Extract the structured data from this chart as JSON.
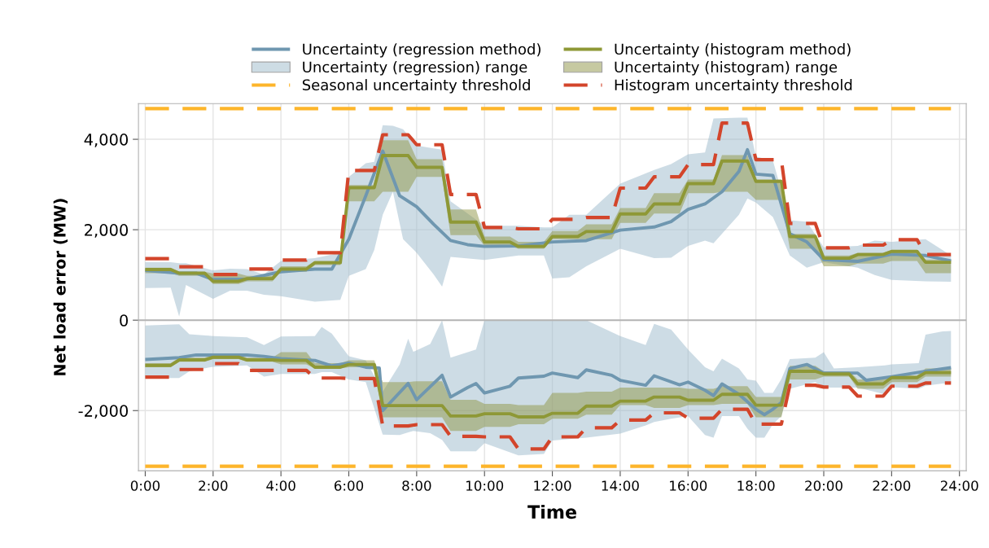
{
  "chart_data": {
    "type": "line",
    "xlabel": "Time",
    "ylabel": "Net load error (MW)",
    "x": [
      0,
      0.75,
      1,
      1.75,
      2,
      2.75,
      3,
      3.75,
      4,
      4.75,
      5,
      5.75,
      6,
      6.75,
      7,
      7.75,
      8,
      8.75,
      9,
      9.75,
      10,
      10.75,
      11,
      11.75,
      12,
      12.75,
      13,
      13.75,
      14,
      14.75,
      15,
      15.75,
      16,
      16.75,
      17,
      17.75,
      18,
      18.75,
      19,
      19.75,
      20,
      20.75,
      21,
      21.75,
      22,
      22.75,
      23,
      23.75
    ],
    "xlim": [
      -0.2,
      24.2
    ],
    "xticks": [
      {
        "value": 0,
        "label": "0:00"
      },
      {
        "value": 2,
        "label": "2:00"
      },
      {
        "value": 4,
        "label": "4:00"
      },
      {
        "value": 6,
        "label": "6:00"
      },
      {
        "value": 8,
        "label": "8:00"
      },
      {
        "value": 10,
        "label": "10:00"
      },
      {
        "value": 12,
        "label": "12:00"
      },
      {
        "value": 14,
        "label": "14:00"
      },
      {
        "value": 16,
        "label": "16:00"
      },
      {
        "value": 18,
        "label": "18:00"
      },
      {
        "value": 20,
        "label": "20:00"
      },
      {
        "value": 22,
        "label": "22:00"
      },
      {
        "value": 24,
        "label": "24:00"
      }
    ],
    "ylim": [
      -3330,
      4790
    ],
    "yticks": [
      {
        "value": -2000,
        "label": "-2,000"
      },
      0,
      {
        "value": 2000,
        "label": "2,000"
      },
      {
        "value": 4000,
        "label": "4,000"
      }
    ],
    "grid": true,
    "legend": "top",
    "ref_lines": [
      {
        "axis": "y",
        "value": 0,
        "color": "#b4b4b4"
      }
    ],
    "series": [
      {
        "name": "Uncertainty (regression method)",
        "color": "#6f97b0",
        "x": [
          0,
          1,
          1.5,
          2,
          3,
          4,
          5,
          5.5,
          6,
          6.5,
          7,
          7.5,
          8,
          8.5,
          9,
          9.5,
          10,
          11,
          12,
          13,
          14,
          15,
          15.5,
          16,
          16.5,
          17,
          17.5,
          17.75,
          18,
          18.5,
          19,
          19.5,
          20,
          21,
          22,
          23,
          23.75
        ],
        "values": [
          1100,
          1040,
          1040,
          900,
          910,
          1070,
          1130,
          1130,
          1790,
          2750,
          3740,
          2750,
          2510,
          2120,
          1760,
          1670,
          1630,
          1640,
          1730,
          1760,
          1990,
          2060,
          2180,
          2450,
          2570,
          2840,
          3290,
          3770,
          3230,
          3200,
          1910,
          1730,
          1340,
          1300,
          1460,
          1430,
          1310
        ]
      },
      {
        "name": "Uncertainty (histogram method)",
        "color": "#8e9836",
        "values": [
          1120,
          1120,
          1040,
          1040,
          860,
          860,
          920,
          920,
          1130,
          1130,
          1270,
          1270,
          2930,
          2930,
          3640,
          3640,
          3380,
          3380,
          2170,
          2170,
          1730,
          1730,
          1630,
          1630,
          1850,
          1850,
          1960,
          1960,
          2350,
          2350,
          2570,
          2570,
          3020,
          3020,
          3520,
          3520,
          3070,
          3070,
          1850,
          1850,
          1370,
          1370,
          1450,
          1450,
          1520,
          1520,
          1280,
          1280
        ]
      },
      {
        "name": "Uncertainty (regression) range",
        "color": "#9cbacb",
        "values": [
          null,
          null,
          null,
          null,
          null,
          null,
          null,
          null,
          null,
          null,
          null,
          null,
          null,
          null,
          null,
          null,
          null,
          null,
          null,
          null,
          null,
          null,
          null,
          null,
          null,
          null,
          null,
          null,
          null,
          null,
          null,
          null,
          null,
          null,
          null,
          null,
          null,
          null,
          null,
          null,
          null,
          null,
          null,
          null,
          null
        ],
        "x": [
          0,
          0.75,
          1,
          1.2,
          2,
          2.5,
          3,
          3.5,
          4,
          5,
          5.75,
          6,
          6.5,
          6.75,
          7,
          7.3,
          7.6,
          8,
          8.5,
          8.75,
          9,
          10,
          11,
          11.75,
          12,
          12.5,
          13,
          14,
          15,
          15.5,
          16,
          16.5,
          16.75,
          17.5,
          17.75,
          18,
          18.5,
          19,
          19.5,
          20,
          21,
          21.5,
          22,
          23,
          23.75
        ],
        "lower": [
          710,
          720,
          80,
          780,
          470,
          650,
          650,
          560,
          530,
          410,
          450,
          980,
          1130,
          1550,
          2330,
          2840,
          1790,
          1490,
          1010,
          740,
          1400,
          1330,
          1430,
          1430,
          920,
          950,
          1190,
          1580,
          1370,
          1380,
          1640,
          1760,
          1700,
          2330,
          2690,
          2600,
          2280,
          1430,
          1160,
          1280,
          1160,
          1000,
          890,
          860,
          850
        ],
        "upper": [
          1280,
          1280,
          1260,
          1260,
          1100,
          1140,
          1130,
          1010,
          1310,
          1370,
          1490,
          3170,
          3470,
          3500,
          4310,
          4300,
          4220,
          3860,
          3800,
          3770,
          2630,
          2090,
          2090,
          2050,
          2050,
          2330,
          2330,
          3020,
          3320,
          3450,
          3670,
          3710,
          4460,
          4480,
          4480,
          3620,
          3530,
          2210,
          2180,
          1610,
          1640,
          1760,
          1730,
          1790,
          1430
        ]
      },
      {
        "name": "Uncertainty (histogram) range",
        "color": "#8f9545",
        "values": [
          null,
          null,
          null,
          null,
          null,
          null,
          null,
          null,
          null,
          null,
          null,
          null,
          null,
          null,
          null,
          null,
          null,
          null,
          null,
          null,
          null,
          null,
          null,
          null,
          null,
          null,
          null,
          null,
          null,
          null,
          null,
          null,
          null,
          null,
          null,
          null,
          null,
          null,
          null,
          null,
          null,
          null,
          null,
          null,
          null,
          null,
          null,
          null
        ],
        "lower": [
          1040,
          1040,
          980,
          980,
          800,
          800,
          860,
          860,
          1070,
          1070,
          1220,
          1220,
          2630,
          2630,
          2840,
          2840,
          3170,
          3170,
          1880,
          1880,
          1640,
          1640,
          1580,
          1580,
          1790,
          1790,
          1790,
          1790,
          2150,
          2150,
          2360,
          2360,
          2810,
          2810,
          2840,
          2840,
          2660,
          2660,
          1580,
          1580,
          1190,
          1190,
          1250,
          1250,
          1310,
          1310,
          1040,
          1040
        ],
        "upper": [
          1160,
          1160,
          1070,
          1070,
          1030,
          1030,
          980,
          980,
          1190,
          1190,
          1310,
          1310,
          2990,
          2990,
          3980,
          3980,
          3560,
          3560,
          2450,
          2450,
          1850,
          1850,
          1730,
          1730,
          1970,
          1970,
          2120,
          2120,
          2480,
          2480,
          2810,
          2810,
          3110,
          3110,
          3650,
          3650,
          3110,
          3110,
          1910,
          1910,
          1430,
          1430,
          1490,
          1490,
          1550,
          1550,
          1340,
          1340
        ]
      },
      {
        "name": "Seasonal uncertainty threshold",
        "color": "#fdb52b",
        "line_style": "dashed",
        "x": [
          0,
          23.75
        ],
        "values": [
          4680,
          4680
        ]
      },
      {
        "name": "Histogram uncertainty threshold",
        "color": "#d3452b",
        "line_style": "dashed",
        "values": [
          1360,
          1360,
          1180,
          1180,
          1010,
          1010,
          1130,
          1130,
          1330,
          1330,
          1490,
          1490,
          3310,
          3310,
          4100,
          4100,
          3880,
          3880,
          2780,
          2780,
          2050,
          2050,
          2020,
          2020,
          2230,
          2230,
          2270,
          2270,
          2920,
          2920,
          3170,
          3170,
          3440,
          3440,
          4360,
          4360,
          3550,
          3550,
          2140,
          2140,
          1600,
          1600,
          1660,
          1660,
          1780,
          1780,
          1450,
          1450
        ]
      },
      {
        "color": "#6f97b0",
        "x": [
          0,
          1,
          1.5,
          2,
          3,
          3.5,
          4,
          5,
          5.5,
          6,
          6.5,
          6.9,
          7,
          7.75,
          8,
          8.75,
          9,
          9.5,
          9.75,
          10,
          10.75,
          11,
          11.75,
          12,
          12.75,
          13,
          13.75,
          14,
          14.75,
          15,
          15.75,
          16,
          16.5,
          16.75,
          17,
          17.5,
          18,
          18.25,
          18.5,
          18.75,
          19,
          19.5,
          20,
          21,
          21.25,
          22,
          23,
          23.75
        ],
        "values": [
          -870,
          -830,
          -770,
          -770,
          -770,
          -800,
          -850,
          -890,
          -1010,
          -950,
          -1040,
          -1060,
          -2000,
          -1400,
          -1760,
          -1220,
          -1700,
          -1490,
          -1400,
          -1610,
          -1460,
          -1280,
          -1240,
          -1170,
          -1270,
          -1100,
          -1220,
          -1330,
          -1440,
          -1230,
          -1430,
          -1370,
          -1550,
          -1670,
          -1410,
          -1640,
          -1970,
          -2090,
          -1970,
          -1820,
          -1070,
          -980,
          -1170,
          -1170,
          -1330,
          -1250,
          -1130,
          -1050
        ]
      },
      {
        "color": "#8e9836",
        "values": [
          -1000,
          -1000,
          -880,
          -880,
          -820,
          -820,
          -880,
          -880,
          -890,
          -890,
          -1040,
          -1040,
          -980,
          -980,
          -1890,
          -1890,
          -1890,
          -1890,
          -2120,
          -2120,
          -2070,
          -2070,
          -2140,
          -2140,
          -2060,
          -2060,
          -1900,
          -1900,
          -1790,
          -1790,
          -1700,
          -1700,
          -1770,
          -1770,
          -1640,
          -1640,
          -1880,
          -1880,
          -1130,
          -1130,
          -1190,
          -1190,
          -1410,
          -1410,
          -1270,
          -1270,
          -1160,
          -1160
        ]
      },
      {
        "color": "#9cbacb",
        "values": [
          null,
          null,
          null,
          null,
          null,
          null,
          null,
          null,
          null,
          null,
          null,
          null,
          null,
          null,
          null,
          null,
          null,
          null,
          null,
          null,
          null,
          null,
          null,
          null,
          null,
          null,
          null,
          null,
          null,
          null,
          null,
          null,
          null,
          null,
          null,
          null,
          null,
          null,
          null,
          null,
          null,
          null,
          null,
          null,
          null,
          null,
          null,
          null,
          null,
          null
        ],
        "x": [
          0,
          1,
          1.3,
          2,
          3,
          3.5,
          4,
          5,
          5.2,
          5.5,
          6,
          6.5,
          7,
          7.5,
          7.75,
          7.9,
          8.4,
          8.75,
          9,
          9.75,
          10,
          11,
          11.75,
          12,
          13,
          14,
          14.75,
          15,
          15.5,
          16,
          16.5,
          16.75,
          17,
          17.5,
          17.75,
          18,
          18.25,
          18.5,
          18.75,
          19,
          19.75,
          20,
          20.3,
          21,
          21.8,
          22,
          22.8,
          23,
          23.5,
          23.75
        ],
        "lower": [
          -1280,
          -1280,
          -1130,
          -1030,
          -1000,
          -1250,
          -1190,
          -1190,
          -1150,
          -1150,
          -1310,
          -1370,
          -2530,
          -2540,
          -2480,
          -2450,
          -2500,
          -2650,
          -2900,
          -2900,
          -2720,
          -2990,
          -2960,
          -2660,
          -2600,
          -2510,
          -2330,
          -2250,
          -2180,
          -2120,
          -2540,
          -2600,
          -2120,
          -2120,
          -2400,
          -2600,
          -2600,
          -2300,
          -2120,
          -1520,
          -1370,
          -1490,
          -1490,
          -1490,
          -1640,
          -1480,
          -1520,
          -1450,
          -1400,
          -1400
        ],
        "upper": [
          -120,
          -90,
          -310,
          -350,
          -380,
          -550,
          -360,
          -350,
          -150,
          -300,
          -800,
          -890,
          -1580,
          -980,
          -410,
          -700,
          -530,
          0,
          -830,
          -650,
          0,
          0,
          0,
          0,
          0,
          -350,
          -550,
          -80,
          -210,
          -650,
          -1040,
          -1130,
          -850,
          -1070,
          -1310,
          -1340,
          -1610,
          -1610,
          -1300,
          -860,
          -830,
          -710,
          -1070,
          -1040,
          -1000,
          -980,
          -950,
          -320,
          -250,
          -240
        ]
      },
      {
        "color": "#8f9545",
        "values": [
          null,
          null,
          null,
          null,
          null,
          null,
          null,
          null,
          null,
          null,
          null,
          null,
          null,
          null,
          null,
          null,
          null,
          null,
          null,
          null,
          null,
          null,
          null,
          null,
          null,
          null,
          null,
          null,
          null,
          null,
          null,
          null,
          null,
          null,
          null,
          null,
          null,
          null,
          null,
          null,
          null,
          null,
          null,
          null,
          null,
          null,
          null,
          null
        ],
        "lower": [
          -1040,
          -1040,
          -920,
          -920,
          -860,
          -860,
          -920,
          -920,
          -980,
          -980,
          -1070,
          -1070,
          -1040,
          -1040,
          -2150,
          -2150,
          -2150,
          -2150,
          -2450,
          -2450,
          -2360,
          -2360,
          -2300,
          -2300,
          -2180,
          -2180,
          -2090,
          -2090,
          -1880,
          -1880,
          -1940,
          -1940,
          -1880,
          -1880,
          -1850,
          -1850,
          -2150,
          -2150,
          -1310,
          -1310,
          -1250,
          -1250,
          -1520,
          -1520,
          -1370,
          -1370,
          -1250,
          -1250
        ],
        "upper": [
          -950,
          -950,
          -830,
          -830,
          -770,
          -770,
          -830,
          -830,
          -710,
          -710,
          -950,
          -950,
          -890,
          -890,
          -1370,
          -1370,
          -1350,
          -1350,
          -1760,
          -1760,
          -1850,
          -1850,
          -1880,
          -1880,
          -1610,
          -1610,
          -1580,
          -1580,
          -1490,
          -1490,
          -1490,
          -1490,
          -1520,
          -1520,
          -1460,
          -1460,
          -1700,
          -1700,
          -1010,
          -1010,
          -1130,
          -1130,
          -1310,
          -1310,
          -1220,
          -1220,
          -1070,
          -1070
        ]
      },
      {
        "color": "#fdb52b",
        "line_style": "dashed",
        "x": [
          0,
          23.75
        ],
        "values": [
          -3230,
          -3230
        ]
      },
      {
        "color": "#d3452b",
        "line_style": "dashed",
        "values": [
          -1260,
          -1260,
          -1090,
          -1090,
          -960,
          -960,
          -1110,
          -1110,
          -1110,
          -1110,
          -1280,
          -1280,
          -1290,
          -1290,
          -2340,
          -2340,
          -2310,
          -2310,
          -2570,
          -2570,
          -2580,
          -2580,
          -2850,
          -2850,
          -2580,
          -2580,
          -2380,
          -2380,
          -2210,
          -2210,
          -2050,
          -2050,
          -2170,
          -2170,
          -1970,
          -1970,
          -2300,
          -2300,
          -1440,
          -1440,
          -1480,
          -1480,
          -1680,
          -1680,
          -1460,
          -1460,
          -1390,
          -1390
        ]
      }
    ]
  }
}
